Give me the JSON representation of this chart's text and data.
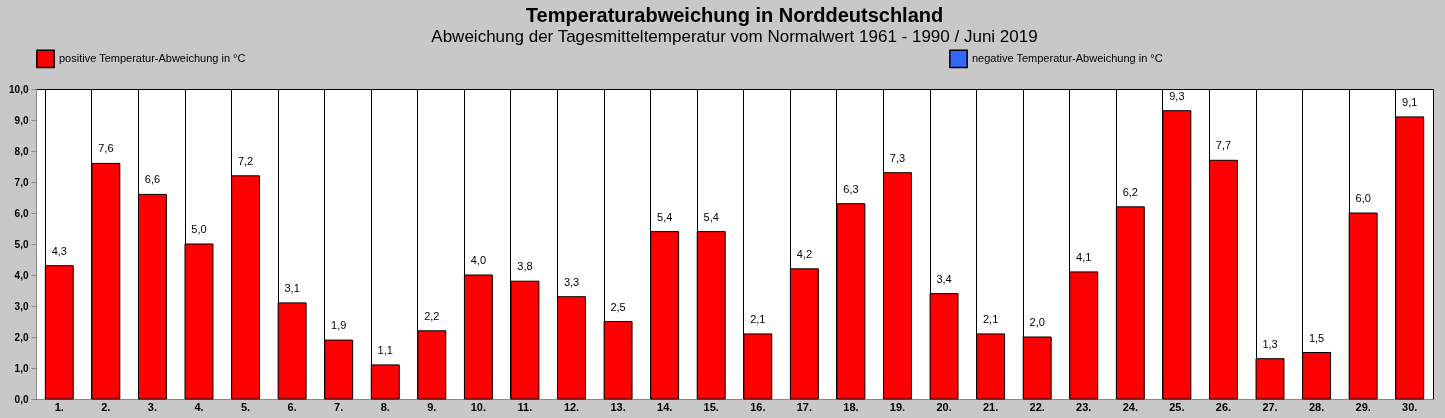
{
  "chart_data": {
    "type": "bar",
    "title": "Temperaturabweichung in Norddeutschland",
    "subtitle": "Abweichung der Tagesmitteltemperatur vom Normalwert 1961 - 1990  /  Juni 2019",
    "categories": [
      "1.",
      "2.",
      "3.",
      "4.",
      "5.",
      "6.",
      "7.",
      "8.",
      "9.",
      "10.",
      "11.",
      "12.",
      "13.",
      "14.",
      "15.",
      "16.",
      "17.",
      "18.",
      "19.",
      "20.",
      "21.",
      "22.",
      "23.",
      "24.",
      "25.",
      "26.",
      "27.",
      "28.",
      "29.",
      "30."
    ],
    "series": [
      {
        "name": "positive Temperatur-Abweichung in °C",
        "color": "#ff0000",
        "values": [
          4.3,
          7.6,
          6.6,
          5.0,
          7.2,
          3.1,
          1.9,
          1.1,
          2.2,
          4.0,
          3.8,
          3.3,
          2.5,
          5.4,
          5.4,
          2.1,
          4.2,
          6.3,
          7.3,
          3.4,
          2.1,
          2.0,
          4.1,
          6.2,
          9.3,
          7.7,
          1.3,
          1.5,
          6.0,
          9.1
        ],
        "value_labels": [
          "4,3",
          "7,6",
          "6,6",
          "5,0",
          "7,2",
          "3,1",
          "1,9",
          "1,1",
          "2,2",
          "4,0",
          "3,8",
          "3,3",
          "2,5",
          "5,4",
          "5,4",
          "2,1",
          "4,2",
          "6,3",
          "7,3",
          "3,4",
          "2,1",
          "2,0",
          "4,1",
          "6,2",
          "9,3",
          "7,7",
          "1,3",
          "1,5",
          "6,0",
          "9,1"
        ]
      },
      {
        "name": "negative Temperatur-Abweichung in °C",
        "color": "#3366ff",
        "values": [
          null,
          null,
          null,
          null,
          null,
          null,
          null,
          null,
          null,
          null,
          null,
          null,
          null,
          null,
          null,
          null,
          null,
          null,
          null,
          null,
          null,
          null,
          null,
          null,
          null,
          null,
          null,
          null,
          null,
          null
        ]
      }
    ],
    "ylim": [
      0,
      10
    ],
    "yticks": [
      {
        "value": 0,
        "label": "0,0"
      },
      {
        "value": 1,
        "label": "1,0"
      },
      {
        "value": 2,
        "label": "2,0"
      },
      {
        "value": 3,
        "label": "3,0"
      },
      {
        "value": 4,
        "label": "4,0"
      },
      {
        "value": 5,
        "label": "5,0"
      },
      {
        "value": 6,
        "label": "6,0"
      },
      {
        "value": 7,
        "label": "7,0"
      },
      {
        "value": 8,
        "label": "8,0"
      },
      {
        "value": 9,
        "label": "9,0"
      },
      {
        "value": 10,
        "label": "10,0"
      }
    ],
    "grid": "x",
    "legend": "top"
  }
}
